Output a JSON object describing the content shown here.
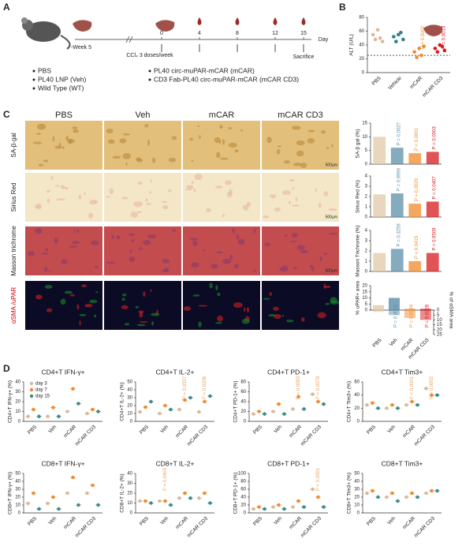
{
  "panel_labels": [
    "A",
    "B",
    "C",
    "D"
  ],
  "timeline": {
    "week_label": "-Week 5",
    "treatment": "CCl₄ 3 doses/week",
    "days": [
      0,
      4,
      8,
      12,
      15
    ],
    "axis_label": "Day",
    "end_label": "Sacrifice"
  },
  "legend_items": [
    "PBS",
    "PL40 LNP (Veh)",
    "Wild Type (WT)",
    "PL40 circ-muPAR-mCAR (mCAR)",
    "CD3 Fab-PL40 circ-muPAR-mCAR (mCAR CD3)"
  ],
  "image_grid": {
    "columns": [
      "PBS",
      "Veh",
      "mCAR",
      "mCAR CD3"
    ],
    "rows": [
      "SA-β-gal",
      "Sirius Red",
      "Masson trichrome",
      "αSMA /uPAR"
    ],
    "scale_bar": "500μm"
  },
  "chart_data": [
    {
      "type": "dot",
      "ylabel": "ALT (U/L)",
      "categories": [
        "PBS",
        "Vehicle",
        "mCAR",
        "mCAR CD3"
      ],
      "colors": [
        "#d9b99b",
        "#2f7f86",
        "#f08a2c",
        "#d7191c"
      ],
      "groups": [
        [
          55,
          48,
          62,
          50,
          45
        ],
        [
          52,
          45,
          55,
          58,
          48
        ],
        [
          30,
          22,
          35,
          25,
          38
        ],
        [
          35,
          30,
          40,
          38,
          32
        ]
      ],
      "ref_line": 25,
      "ylim": [
        0,
        80
      ],
      "yticks": [
        0,
        20,
        40,
        60,
        80
      ],
      "annotations": [
        null,
        null,
        "P = 0.0002",
        "P = 0.0013"
      ]
    },
    {
      "type": "bar",
      "ylabel": "SA-β gal (%)",
      "categories": [
        "PBS",
        "Veh",
        "mCAR",
        "mCAR CD3"
      ],
      "colors": [
        "#e0c9a6",
        "#5b8fa8",
        "#f08a2c",
        "#d7191c"
      ],
      "values": [
        10,
        6,
        4,
        4.5
      ],
      "ylim": [
        0,
        15
      ],
      "yticks": [
        0,
        5,
        10,
        15
      ],
      "annotations": [
        null,
        "P = 0.0027",
        "P < 0.0001",
        "P = 0.0003"
      ]
    },
    {
      "type": "bar",
      "ylabel": "Sirius Red (%)",
      "categories": [
        "PBS",
        "Veh",
        "mCAR",
        "mCAR CD3"
      ],
      "colors": [
        "#e0c9a6",
        "#5b8fa8",
        "#f08a2c",
        "#d7191c"
      ],
      "values": [
        2.2,
        2.3,
        1.3,
        1.5
      ],
      "ylim": [
        0,
        4
      ],
      "yticks": [
        0,
        1,
        2,
        3,
        4
      ],
      "annotations": [
        null,
        "P = 0.9999",
        "P = 0.0020",
        "P = 0.0407"
      ]
    },
    {
      "type": "bar",
      "ylabel": "Masson Trichrome (%)",
      "categories": [
        "PBS",
        "Veh",
        "mCAR",
        "mCAR CD3"
      ],
      "colors": [
        "#e0c9a6",
        "#5b8fa8",
        "#f08a2c",
        "#d7191c"
      ],
      "values": [
        1.8,
        2.2,
        1.0,
        1.8
      ],
      "ylim": [
        0,
        4
      ],
      "yticks": [
        0,
        1,
        2,
        3,
        4
      ],
      "annotations": [
        null,
        "P = 0.3259",
        "P = 0.0415",
        "P = 0.9509"
      ]
    },
    {
      "type": "bar_dual",
      "ylabel": "% uPAR+ area",
      "y2label": "% of αSMA area",
      "categories": [
        "PBS",
        "Veh",
        "mCAR",
        "mCAR CD3"
      ],
      "colors": [
        "#e0c9a6",
        "#5b8fa8",
        "#f08a2c",
        "#d7191c"
      ],
      "series": [
        {
          "values": [
            4,
            10,
            1,
            1
          ]
        },
        {
          "values": [
            2,
            5,
            8,
            10
          ],
          "axis": "y2"
        }
      ],
      "ylim": [
        0,
        20
      ],
      "yticks": [
        0,
        5,
        10,
        15,
        20
      ],
      "y2lim": [
        0,
        25
      ],
      "y2ticks": [
        0,
        5,
        10,
        15,
        20,
        25
      ],
      "annotations": [
        null,
        "P = 0.0008",
        "P = 0.0384",
        "P = 0.0228"
      ]
    },
    {
      "type": "dot_grouped",
      "title": "CD4+T IFN-γ+",
      "ylabel": "CD4+T IFN-γ+ (%)",
      "categories": [
        "PBS",
        "Veh",
        "mCAR",
        "mCAR CD3"
      ],
      "series": [
        {
          "name": "day 3",
          "color": "#d9b99b",
          "values": [
            5,
            5,
            10,
            8
          ]
        },
        {
          "name": "day 7",
          "color": "#f08a2c",
          "values": [
            12,
            14,
            33,
            12
          ]
        },
        {
          "name": "day 15",
          "color": "#3d8b8b",
          "values": [
            5,
            5,
            18,
            10
          ]
        }
      ],
      "ylim": [
        0,
        40
      ],
      "yticks": [
        0,
        10,
        20,
        30,
        40
      ],
      "annotations": [
        null,
        null,
        null,
        null
      ]
    },
    {
      "type": "dot_grouped",
      "title": "CD4+T IL-2+",
      "ylabel": "CD4+T IL-2+ (%)",
      "categories": [
        "PBS",
        "Veh",
        "mCAR",
        "mCAR CD3"
      ],
      "series": [
        {
          "color": "#d9b99b",
          "values": [
            12,
            10,
            15,
            12
          ]
        },
        {
          "color": "#f08a2c",
          "values": [
            18,
            20,
            27,
            25
          ]
        },
        {
          "color": "#3d8b8b",
          "values": [
            25,
            15,
            30,
            32
          ]
        }
      ],
      "ylim": [
        0,
        50
      ],
      "yticks": [
        0,
        10,
        20,
        30,
        40,
        50
      ],
      "annotations": [
        null,
        null,
        "P = 0.0337",
        "P = 0.0206"
      ]
    },
    {
      "type": "dot_grouped",
      "title": "CD4+T PD-1+",
      "ylabel": "CD4+T PD-1+ (%)",
      "categories": [
        "PBS",
        "Veh",
        "mCAR",
        "mCAR CD3"
      ],
      "series": [
        {
          "color": "#d9b99b",
          "values": [
            15,
            20,
            25,
            55
          ]
        },
        {
          "color": "#f08a2c",
          "values": [
            20,
            35,
            50,
            40
          ]
        },
        {
          "color": "#3d8b8b",
          "values": [
            15,
            15,
            25,
            35
          ]
        }
      ],
      "ylim": [
        0,
        80
      ],
      "yticks": [
        0,
        20,
        40,
        60,
        80
      ],
      "annotations": [
        null,
        null,
        "P = 0.0083",
        "P = 0.0078"
      ]
    },
    {
      "type": "dot_grouped",
      "title": "CD4+T Tim3+",
      "ylabel": "CD4+T Tim3+ (%)",
      "categories": [
        "PBS",
        "Veh",
        "mCAR",
        "mCAR CD3"
      ],
      "series": [
        {
          "color": "#d9b99b",
          "values": [
            25,
            20,
            25,
            50
          ]
        },
        {
          "color": "#f08a2c",
          "values": [
            28,
            25,
            30,
            40
          ]
        },
        {
          "color": "#3d8b8b",
          "values": [
            20,
            20,
            25,
            40
          ]
        }
      ],
      "ylim": [
        0,
        60
      ],
      "yticks": [
        0,
        20,
        40,
        60
      ],
      "annotations": [
        null,
        null,
        "P < 0.0001",
        "P = 0.0002"
      ]
    },
    {
      "type": "dot_grouped",
      "title": "CD8+T IFN-γ+",
      "ylabel": "CD8+T IFN-γ+ (%)",
      "categories": [
        "PBS",
        "Veh",
        "mCAR",
        "mCAR CD3"
      ],
      "series": [
        {
          "color": "#d9b99b",
          "values": [
            12,
            12,
            25,
            25
          ]
        },
        {
          "color": "#f08a2c",
          "values": [
            25,
            20,
            45,
            35
          ]
        },
        {
          "color": "#3d8b8b",
          "values": [
            5,
            5,
            10,
            10
          ]
        }
      ],
      "ylim": [
        0,
        50
      ],
      "yticks": [
        0,
        10,
        20,
        30,
        40,
        50
      ],
      "annotations": [
        null,
        null,
        null,
        null
      ]
    },
    {
      "type": "dot_grouped",
      "title": "CD8+T IL-2+",
      "ylabel": "CD8+T IL-2+ (%)",
      "categories": [
        "PBS",
        "Veh",
        "mCAR",
        "mCAR CD3"
      ],
      "series": [
        {
          "color": "#d9b99b",
          "values": [
            12,
            12,
            15,
            15
          ]
        },
        {
          "color": "#f08a2c",
          "values": [
            12,
            12,
            20,
            20
          ]
        },
        {
          "color": "#3d8b8b",
          "values": [
            10,
            8,
            15,
            10
          ]
        }
      ],
      "ylim": [
        0,
        40
      ],
      "yticks": [
        0,
        10,
        20,
        30,
        40
      ],
      "annotations": [
        null,
        "P = 0.0403",
        null,
        null
      ]
    },
    {
      "type": "dot_grouped",
      "title": "CD8+T PD-1+",
      "ylabel": "CD8+T PD-1+ (%)",
      "categories": [
        "PBS",
        "Veh",
        "mCAR",
        "mCAR CD3"
      ],
      "series": [
        {
          "color": "#d9b99b",
          "values": [
            10,
            15,
            15,
            60
          ]
        },
        {
          "color": "#f08a2c",
          "values": [
            15,
            20,
            30,
            40
          ]
        },
        {
          "color": "#3d8b8b",
          "values": [
            10,
            10,
            15,
            15
          ]
        }
      ],
      "ylim": [
        0,
        100
      ],
      "yticks": [
        0,
        20,
        40,
        60,
        80,
        100
      ],
      "annotations": [
        null,
        null,
        null,
        "P < 0.0001"
      ]
    },
    {
      "type": "dot_grouped",
      "title": "CD8+T Tim3+",
      "ylabel": "CD8+T Tim3+ (%)",
      "categories": [
        "PBS",
        "Veh",
        "mCAR",
        "mCAR CD3"
      ],
      "series": [
        {
          "color": "#d9b99b",
          "values": [
            25,
            20,
            20,
            25
          ]
        },
        {
          "color": "#f08a2c",
          "values": [
            28,
            25,
            25,
            28
          ]
        },
        {
          "color": "#3d8b8b",
          "values": [
            20,
            15,
            20,
            28
          ]
        }
      ],
      "ylim": [
        0,
        50
      ],
      "yticks": [
        0,
        10,
        20,
        30,
        40,
        50
      ],
      "annotations": [
        null,
        null,
        null,
        null
      ]
    }
  ]
}
